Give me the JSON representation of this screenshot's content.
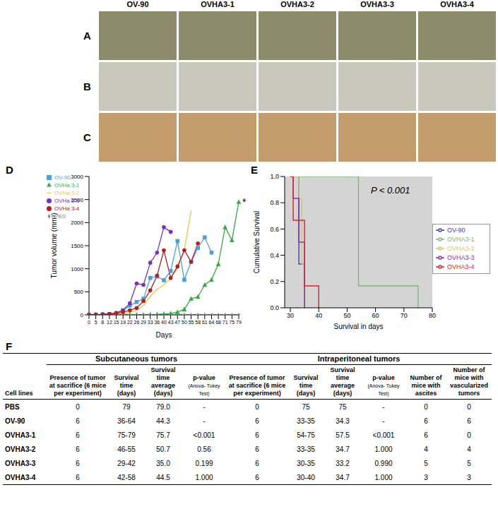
{
  "images": {
    "columns": [
      "OV-90",
      "OVHA3-1",
      "OVHA3-2",
      "OVHA3-3",
      "OVHA3-4"
    ],
    "rows": [
      "A",
      "B",
      "C"
    ]
  },
  "chart_data": [
    {
      "label": "D",
      "type": "line",
      "x_label": "Days",
      "y_label": "Tumor volume (mm³)",
      "categories": [
        "0",
        "5",
        "8",
        "12",
        "15",
        "19",
        "22",
        "26",
        "29",
        "33",
        "36",
        "40",
        "43",
        "47",
        "50",
        "55",
        "58",
        "61",
        "64",
        "68",
        "71",
        "75",
        "79"
      ],
      "ylim": [
        0,
        3000
      ],
      "yticks": [
        0,
        500,
        1000,
        1500,
        2000,
        2500,
        3000
      ],
      "grid": false,
      "legend": "top-left",
      "annotations": [
        {
          "text": "*",
          "x": "79",
          "y": 2450
        }
      ],
      "series": [
        {
          "name": "PBS",
          "color": "#8c8c8c",
          "marker": "diamond",
          "values": [
            0,
            0,
            0,
            0,
            0,
            0,
            0,
            0,
            0,
            0,
            0,
            0,
            0,
            0,
            0,
            0,
            0,
            0,
            0,
            0,
            0,
            0,
            0
          ]
        },
        {
          "name": "OV-90",
          "color": "#4a9fe0",
          "marker": "square",
          "values": [
            0,
            5,
            10,
            20,
            40,
            100,
            200,
            280,
            350,
            800,
            830,
            750,
            950,
            1600,
            760,
            1150,
            1450,
            1680,
            1350,
            null,
            null,
            null,
            null
          ]
        },
        {
          "name": "OVHa 3-1",
          "color": "#3aa845",
          "marker": "triangle",
          "values": [
            0,
            0,
            0,
            0,
            0,
            0,
            0,
            0,
            0,
            5,
            10,
            20,
            30,
            60,
            120,
            350,
            390,
            650,
            760,
            1100,
            1900,
            1620,
            2450
          ]
        },
        {
          "name": "OVHa 3-2",
          "color": "#f0c040",
          "marker": "none",
          "values": [
            0,
            0,
            5,
            10,
            15,
            20,
            50,
            100,
            200,
            400,
            550,
            650,
            800,
            1000,
            1400,
            2250,
            null,
            null,
            null,
            null,
            null,
            null,
            null
          ]
        },
        {
          "name": "OVHa 3-3",
          "color": "#7b2fbf",
          "marker": "circle",
          "values": [
            0,
            5,
            10,
            20,
            40,
            100,
            250,
            680,
            650,
            1130,
            1350,
            1900,
            1800,
            null,
            null,
            null,
            null,
            null,
            null,
            null,
            null,
            null,
            null
          ]
        },
        {
          "name": "OVHa 3-4",
          "color": "#b02020",
          "marker": "circle",
          "values": [
            0,
            5,
            10,
            20,
            30,
            60,
            100,
            150,
            300,
            530,
            850,
            1400,
            800,
            1050,
            1400,
            1150,
            1550,
            null,
            null,
            null,
            null,
            null,
            null
          ]
        }
      ]
    },
    {
      "label": "E",
      "type": "line",
      "line_style": "step",
      "x_label": "Survival in days",
      "y_label": "Cumulative Survival",
      "annotation": "P < 0.001",
      "xlim": [
        28,
        80
      ],
      "xticks": [
        30,
        40,
        50,
        60,
        70,
        80
      ],
      "ylim": [
        0,
        1
      ],
      "yticks": [
        {
          "value": 0,
          "label": "0.0"
        },
        {
          "value": 0.2,
          "label": "0.2"
        },
        {
          "value": 0.4,
          "label": "0.4"
        },
        {
          "value": 0.6,
          "label": "0.6"
        },
        {
          "value": 0.8,
          "label": "0.8"
        },
        {
          "value": 1,
          "label": "1.0"
        }
      ],
      "grid": false,
      "legend": "right",
      "series": [
        {
          "name": "OV-90",
          "color": "#4040c0",
          "x": [
            30,
            33,
            35
          ],
          "values": [
            1,
            0.333,
            0
          ]
        },
        {
          "name": "OVHA3-1",
          "color": "#70c070",
          "x": [
            30,
            54,
            75
          ],
          "values": [
            1,
            0.167,
            0
          ]
        },
        {
          "name": "OVHA3-2",
          "color": "#c8c878",
          "x": [
            30,
            33,
            34,
            35
          ],
          "values": [
            1,
            0.833,
            0.333,
            0
          ]
        },
        {
          "name": "OVHA3-3",
          "color": "#8a30a0",
          "x": [
            30,
            31,
            33,
            35
          ],
          "values": [
            1,
            0.833,
            0.5,
            0
          ]
        },
        {
          "name": "OVHA3-4",
          "color": "#e02020",
          "x": [
            30,
            31,
            35,
            40
          ],
          "values": [
            1,
            0.667,
            0.167,
            0
          ]
        }
      ]
    }
  ],
  "table": {
    "label": "F",
    "groups": [
      {
        "text": "Subcutaneous tumors",
        "span": 4
      },
      {
        "text": "Intraperitoneal tumors",
        "span": 6
      }
    ],
    "columns": [
      {
        "text": "Cell lines"
      },
      {
        "text": "Presence of tumor at sacrifice (6 mice per experiment)"
      },
      {
        "text": "Survival time (days)"
      },
      {
        "text": "Survival time average (days)"
      },
      {
        "text": "p-value",
        "note": "(Anova- Tukey Test)"
      },
      {
        "text": "Presence of tumor at sacrifice (6 mice per experiment)"
      },
      {
        "text": "Survival time (days)"
      },
      {
        "text": "Survival time average (days)"
      },
      {
        "text": "p-value",
        "note": "(Anova- Tukey Test)"
      },
      {
        "text": "Number of mice with ascites"
      },
      {
        "text": "Number of mice with vascularized tumors"
      }
    ],
    "rows": [
      [
        "PBS",
        "0",
        "79",
        "79.0",
        "-",
        "0",
        "75",
        "75",
        "-",
        "0",
        "0"
      ],
      [
        "OV-90",
        "6",
        "36-64",
        "44.3",
        "-",
        "6",
        "33-35",
        "34.3",
        "-",
        "6",
        "6"
      ],
      [
        "OVHA3-1",
        "6",
        "75-79",
        "75.7",
        "<0.001",
        "6",
        "54-75",
        "57.5",
        "<0.001",
        "6",
        "0"
      ],
      [
        "OVHA3-2",
        "6",
        "46-55",
        "50.7",
        "0.56",
        "6",
        "33-35",
        "34.7",
        "1.000",
        "4",
        "4"
      ],
      [
        "OVHA3-3",
        "6",
        "29-42",
        "35.0",
        "0.199",
        "6",
        "30-35",
        "33.2",
        "0.990",
        "5",
        "5"
      ],
      [
        "OVHA3-4",
        "6",
        "42-58",
        "44.5",
        "1.000",
        "6",
        "30-40",
        "34.7",
        "1.000",
        "3",
        "3"
      ]
    ]
  }
}
